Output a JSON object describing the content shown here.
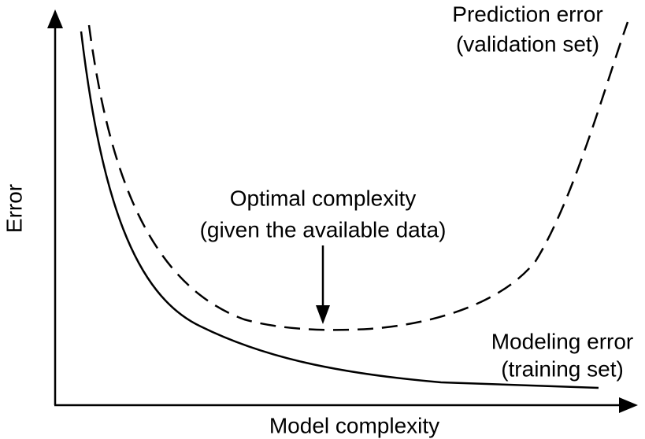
{
  "axes": {
    "x_label": "Model complexity",
    "y_label": "Error"
  },
  "annotations": [
    {
      "lines": [
        "Prediction error",
        "(validation set)"
      ]
    },
    {
      "lines": [
        "Optimal complexity",
        "(given the available data)"
      ]
    },
    {
      "lines": [
        "Modeling error",
        "(training set)"
      ]
    }
  ]
}
